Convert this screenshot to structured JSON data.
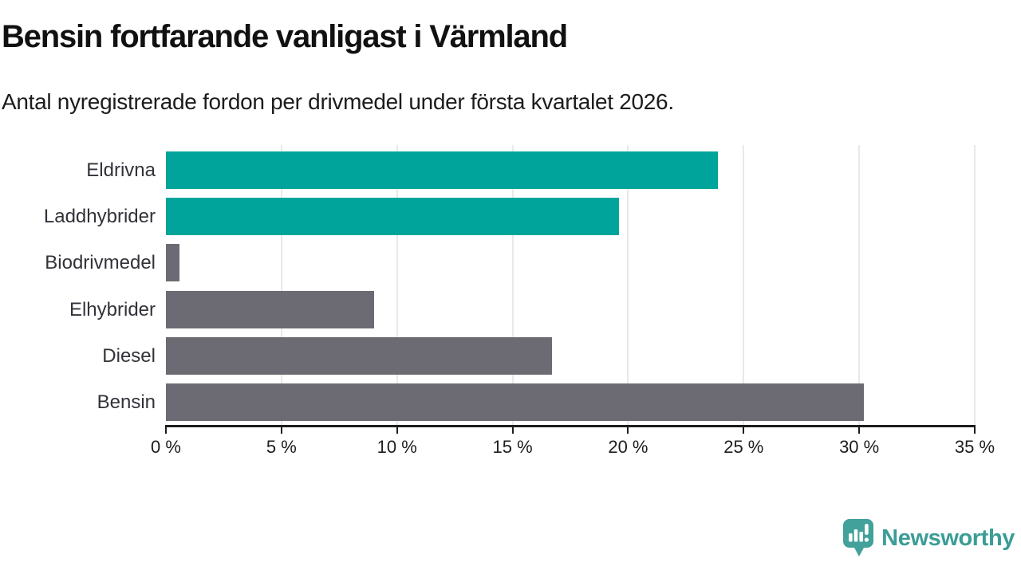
{
  "header": {
    "title": "Bensin fortfarande vanligast i Värmland",
    "subtitle": "Antal nyregistrerade fordon per drivmedel under första kvartalet 2026."
  },
  "chart_data": {
    "type": "bar",
    "orientation": "horizontal",
    "title": "Bensin fortfarande vanligast i Värmland",
    "subtitle": "Antal nyregistrerade fordon per drivmedel under första kvartalet 2026.",
    "categories": [
      "Eldrivna",
      "Laddhybrider",
      "Biodrivmedel",
      "Elhybrider",
      "Diesel",
      "Bensin"
    ],
    "values": [
      23.9,
      19.6,
      0.6,
      9.0,
      16.7,
      30.2
    ],
    "unit": "%",
    "bar_colors": [
      "#00a49a",
      "#00a49a",
      "#6c6a72",
      "#6c6a72",
      "#6c6a72",
      "#6c6a72"
    ],
    "xlim": [
      0,
      35
    ],
    "x_ticks": [
      0,
      5,
      10,
      15,
      20,
      25,
      30,
      35
    ],
    "x_tick_labels": [
      "0 %",
      "5 %",
      "10 %",
      "15 %",
      "20 %",
      "25 %",
      "30 %",
      "35 %"
    ],
    "grid": "vertical",
    "legend": "none"
  },
  "colors": {
    "accent_teal": "#00a49a",
    "neutral_gray": "#6c6a72",
    "axis": "#1d1d1d",
    "gridline": "#e9e9e9"
  },
  "branding": {
    "logo_text": "Newsworthy",
    "logo_color": "#3a9d96",
    "logo_icon": "speech-bubble-bar-chart-icon"
  }
}
